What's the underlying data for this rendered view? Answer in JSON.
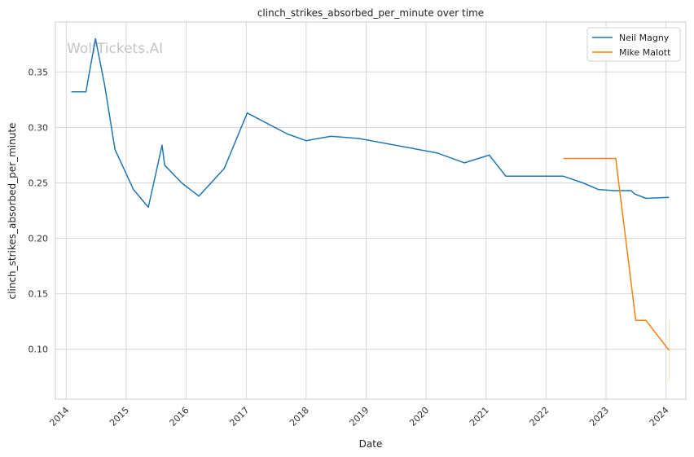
{
  "chart_data": {
    "type": "line",
    "title": "clinch_strikes_absorbed_per_minute over time",
    "xlabel": "Date",
    "ylabel": "clinch_strikes_absorbed_per_minute",
    "watermark": "WolfTickets.AI",
    "x_ticks": [
      "2014",
      "2015",
      "2016",
      "2017",
      "2018",
      "2019",
      "2020",
      "2021",
      "2022",
      "2023",
      "2024"
    ],
    "y_ticks": [
      "0.10",
      "0.15",
      "0.20",
      "0.25",
      "0.30",
      "0.35"
    ],
    "xlim": [
      "2013-10-27",
      "2024-05-01"
    ],
    "ylim": [
      0.055,
      0.395
    ],
    "grid": true,
    "legend_position": "top-right",
    "series": [
      {
        "name": "Neil Magny",
        "color": "#1f77b4",
        "points": [
          [
            "2014-02-01",
            0.332
          ],
          [
            "2014-05-01",
            0.332
          ],
          [
            "2014-06-28",
            0.38
          ],
          [
            "2014-08-23",
            0.338
          ],
          [
            "2014-10-25",
            0.28
          ],
          [
            "2015-02-14",
            0.244
          ],
          [
            "2015-05-16",
            0.228
          ],
          [
            "2015-08-08",
            0.284
          ],
          [
            "2015-08-23",
            0.266
          ],
          [
            "2015-12-05",
            0.25
          ],
          [
            "2016-03-19",
            0.238
          ],
          [
            "2016-08-20",
            0.263
          ],
          [
            "2017-01-07",
            0.313
          ],
          [
            "2017-09-09",
            0.294
          ],
          [
            "2018-01-01",
            0.288
          ],
          [
            "2018-06-01",
            0.292
          ],
          [
            "2018-11-17",
            0.29
          ],
          [
            "2020-03-07",
            0.277
          ],
          [
            "2020-08-22",
            0.268
          ],
          [
            "2021-01-20",
            0.275
          ],
          [
            "2021-05-01",
            0.256
          ],
          [
            "2022-04-16",
            0.256
          ],
          [
            "2022-08-13",
            0.25
          ],
          [
            "2022-11-15",
            0.244
          ],
          [
            "2023-02-18",
            0.243
          ],
          [
            "2023-06-03",
            0.243
          ],
          [
            "2023-06-24",
            0.24
          ],
          [
            "2023-09-01",
            0.236
          ],
          [
            "2024-01-20",
            0.237
          ]
        ]
      },
      {
        "name": "Mike Malott",
        "color": "#ff7f0e",
        "points": [
          [
            "2022-04-16",
            0.272
          ],
          [
            "2023-03-01",
            0.272
          ],
          [
            "2023-07-01",
            0.126
          ],
          [
            "2023-09-01",
            0.126
          ],
          [
            "2024-01-20",
            0.099
          ]
        ],
        "band": {
          "x": "2024-01-20",
          "low": 0.071,
          "high": 0.126
        }
      }
    ]
  }
}
